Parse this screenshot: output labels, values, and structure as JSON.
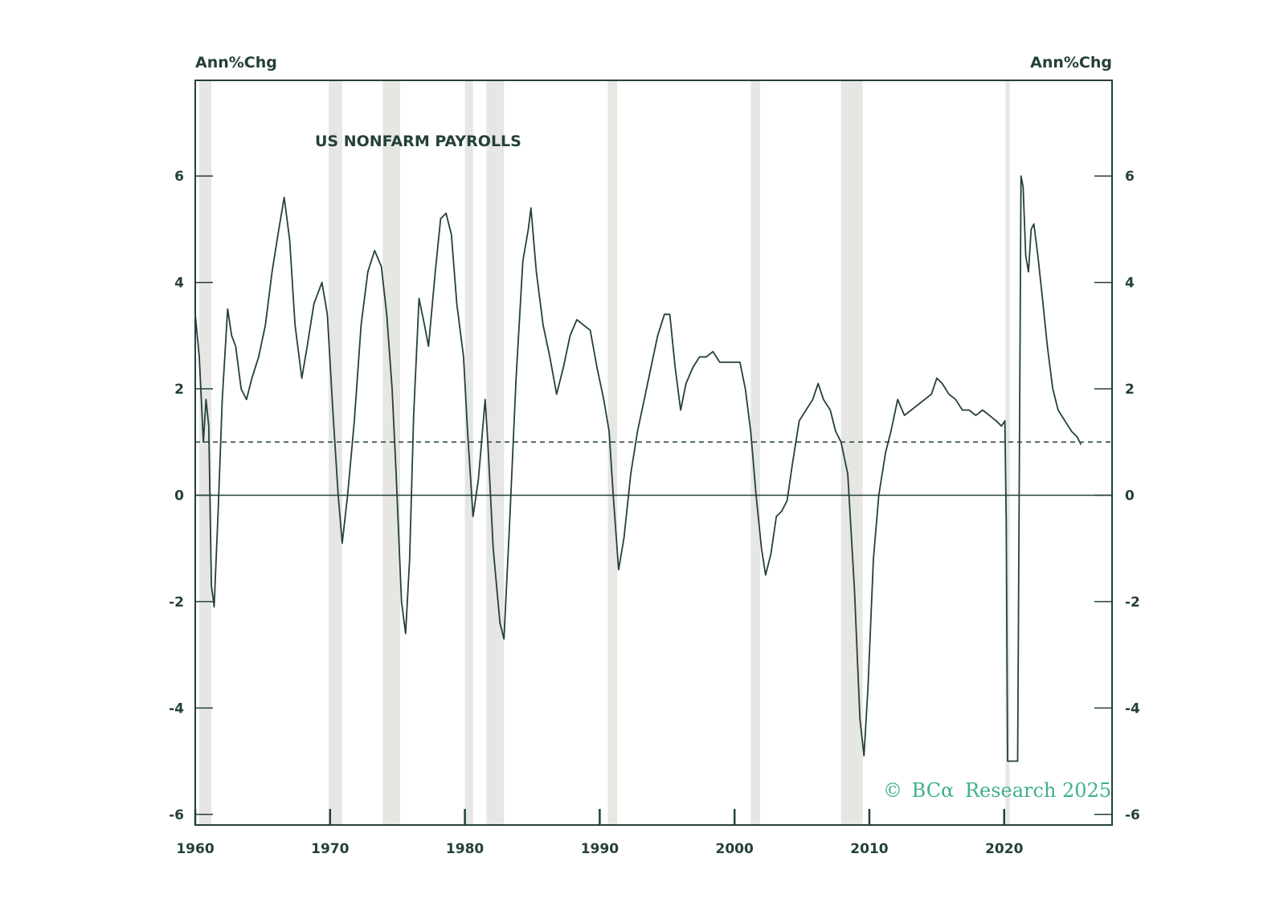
{
  "chart_data": {
    "type": "line",
    "title": "US NONFARM PAYROLLS",
    "ylabel_left": "Ann%Chg",
    "ylabel_right": "Ann%Chg",
    "xlim": [
      1960,
      2028
    ],
    "ylim": [
      -6.2,
      7.8
    ],
    "x_ticks": [
      1960,
      1970,
      1980,
      1990,
      2000,
      2010,
      2020
    ],
    "x_tick_labels": [
      "1960",
      "1970",
      "1980",
      "1990",
      "2000",
      "2010",
      "2020"
    ],
    "y_ticks": [
      -6,
      -4,
      -2,
      0,
      2,
      4,
      6
    ],
    "y_tick_labels": [
      "-6",
      "-4",
      "-2",
      "0",
      "2",
      "4",
      "6"
    ],
    "reference_lines": [
      {
        "y": 0,
        "style": "solid"
      },
      {
        "y": 1,
        "style": "dashed"
      }
    ],
    "recessions": [
      [
        1960.3,
        1961.2
      ],
      [
        1969.9,
        1970.9
      ],
      [
        1973.9,
        1975.2
      ],
      [
        1980.0,
        1980.6
      ],
      [
        1981.6,
        1982.9
      ],
      [
        1990.6,
        1991.3
      ],
      [
        2001.2,
        2001.9
      ],
      [
        2007.9,
        2009.5
      ],
      [
        2020.1,
        2020.4
      ]
    ],
    "series": [
      {
        "values": [
          [
            1960.0,
            3.4
          ],
          [
            1960.3,
            2.6
          ],
          [
            1960.6,
            1.0
          ],
          [
            1960.8,
            1.8
          ],
          [
            1961.0,
            1.3
          ],
          [
            1961.2,
            -1.7
          ],
          [
            1961.4,
            -2.1
          ],
          [
            1961.7,
            -0.3
          ],
          [
            1962.0,
            1.8
          ],
          [
            1962.4,
            3.5
          ],
          [
            1962.7,
            3.0
          ],
          [
            1963.0,
            2.8
          ],
          [
            1963.4,
            2.0
          ],
          [
            1963.8,
            1.8
          ],
          [
            1964.2,
            2.2
          ],
          [
            1964.7,
            2.6
          ],
          [
            1965.2,
            3.2
          ],
          [
            1965.7,
            4.2
          ],
          [
            1966.2,
            5.0
          ],
          [
            1966.6,
            5.6
          ],
          [
            1967.0,
            4.8
          ],
          [
            1967.4,
            3.2
          ],
          [
            1967.9,
            2.2
          ],
          [
            1968.3,
            2.8
          ],
          [
            1968.8,
            3.6
          ],
          [
            1969.4,
            4.0
          ],
          [
            1969.8,
            3.4
          ],
          [
            1970.2,
            1.6
          ],
          [
            1970.6,
            0.0
          ],
          [
            1970.9,
            -0.9
          ],
          [
            1971.3,
            0.0
          ],
          [
            1971.8,
            1.4
          ],
          [
            1972.3,
            3.2
          ],
          [
            1972.8,
            4.2
          ],
          [
            1973.3,
            4.6
          ],
          [
            1973.8,
            4.3
          ],
          [
            1974.2,
            3.4
          ],
          [
            1974.6,
            2.0
          ],
          [
            1974.9,
            0.4
          ],
          [
            1975.3,
            -2.0
          ],
          [
            1975.6,
            -2.6
          ],
          [
            1975.9,
            -1.2
          ],
          [
            1976.2,
            1.5
          ],
          [
            1976.6,
            3.7
          ],
          [
            1977.0,
            3.2
          ],
          [
            1977.3,
            2.8
          ],
          [
            1977.8,
            4.2
          ],
          [
            1978.2,
            5.2
          ],
          [
            1978.6,
            5.3
          ],
          [
            1979.0,
            4.9
          ],
          [
            1979.4,
            3.6
          ],
          [
            1979.9,
            2.6
          ],
          [
            1980.2,
            1.2
          ],
          [
            1980.6,
            -0.4
          ],
          [
            1981.0,
            0.3
          ],
          [
            1981.5,
            1.8
          ],
          [
            1981.7,
            1.0
          ],
          [
            1982.1,
            -1.0
          ],
          [
            1982.6,
            -2.4
          ],
          [
            1982.9,
            -2.7
          ],
          [
            1983.3,
            -0.6
          ],
          [
            1983.8,
            2.2
          ],
          [
            1984.3,
            4.4
          ],
          [
            1984.7,
            5.0
          ],
          [
            1984.9,
            5.4
          ],
          [
            1985.3,
            4.2
          ],
          [
            1985.8,
            3.2
          ],
          [
            1986.3,
            2.6
          ],
          [
            1986.8,
            1.9
          ],
          [
            1987.3,
            2.4
          ],
          [
            1987.8,
            3.0
          ],
          [
            1988.3,
            3.3
          ],
          [
            1988.8,
            3.2
          ],
          [
            1989.3,
            3.1
          ],
          [
            1989.8,
            2.4
          ],
          [
            1990.3,
            1.8
          ],
          [
            1990.7,
            1.2
          ],
          [
            1991.0,
            0.0
          ],
          [
            1991.4,
            -1.4
          ],
          [
            1991.8,
            -0.8
          ],
          [
            1992.3,
            0.4
          ],
          [
            1992.8,
            1.2
          ],
          [
            1993.3,
            1.8
          ],
          [
            1993.8,
            2.4
          ],
          [
            1994.3,
            3.0
          ],
          [
            1994.8,
            3.4
          ],
          [
            1995.2,
            3.4
          ],
          [
            1995.6,
            2.4
          ],
          [
            1996.0,
            1.6
          ],
          [
            1996.4,
            2.1
          ],
          [
            1996.9,
            2.4
          ],
          [
            1997.4,
            2.6
          ],
          [
            1997.9,
            2.6
          ],
          [
            1998.4,
            2.7
          ],
          [
            1998.9,
            2.5
          ],
          [
            1999.4,
            2.5
          ],
          [
            1999.9,
            2.5
          ],
          [
            2000.4,
            2.5
          ],
          [
            2000.8,
            2.0
          ],
          [
            2001.2,
            1.2
          ],
          [
            2001.6,
            0.0
          ],
          [
            2002.0,
            -1.0
          ],
          [
            2002.3,
            -1.5
          ],
          [
            2002.7,
            -1.1
          ],
          [
            2003.1,
            -0.4
          ],
          [
            2003.5,
            -0.3
          ],
          [
            2003.9,
            -0.1
          ],
          [
            2004.3,
            0.6
          ],
          [
            2004.8,
            1.4
          ],
          [
            2005.3,
            1.6
          ],
          [
            2005.8,
            1.8
          ],
          [
            2006.2,
            2.1
          ],
          [
            2006.6,
            1.8
          ],
          [
            2007.1,
            1.6
          ],
          [
            2007.5,
            1.2
          ],
          [
            2007.9,
            1.0
          ],
          [
            2008.4,
            0.4
          ],
          [
            2008.9,
            -1.8
          ],
          [
            2009.3,
            -4.2
          ],
          [
            2009.6,
            -4.9
          ],
          [
            2009.9,
            -3.6
          ],
          [
            2010.3,
            -1.2
          ],
          [
            2010.7,
            0.0
          ],
          [
            2011.2,
            0.8
          ],
          [
            2011.6,
            1.2
          ],
          [
            2012.1,
            1.8
          ],
          [
            2012.6,
            1.5
          ],
          [
            2013.1,
            1.6
          ],
          [
            2013.6,
            1.7
          ],
          [
            2014.1,
            1.8
          ],
          [
            2014.6,
            1.9
          ],
          [
            2015.0,
            2.2
          ],
          [
            2015.4,
            2.1
          ],
          [
            2015.9,
            1.9
          ],
          [
            2016.4,
            1.8
          ],
          [
            2016.9,
            1.6
          ],
          [
            2017.4,
            1.6
          ],
          [
            2017.9,
            1.5
          ],
          [
            2018.4,
            1.6
          ],
          [
            2018.9,
            1.5
          ],
          [
            2019.4,
            1.4
          ],
          [
            2019.8,
            1.3
          ],
          [
            2020.05,
            1.4
          ],
          [
            2020.15,
            -0.5
          ],
          [
            2020.25,
            -5.0
          ],
          [
            2020.7,
            -5.0
          ],
          [
            2021.0,
            -5.0
          ],
          [
            2021.12,
            0.5
          ],
          [
            2021.25,
            6.0
          ],
          [
            2021.4,
            5.8
          ],
          [
            2021.6,
            4.5
          ],
          [
            2021.8,
            4.2
          ],
          [
            2022.0,
            5.0
          ],
          [
            2022.2,
            5.1
          ],
          [
            2022.5,
            4.5
          ],
          [
            2022.8,
            3.8
          ],
          [
            2023.2,
            2.8
          ],
          [
            2023.6,
            2.0
          ],
          [
            2024.0,
            1.6
          ],
          [
            2024.5,
            1.4
          ],
          [
            2025.0,
            1.2
          ],
          [
            2025.4,
            1.1
          ],
          [
            2025.7,
            0.95
          ]
        ]
      }
    ]
  },
  "credit": {
    "symbol": "©",
    "brand": "BCα",
    "rest": "Research 2025"
  },
  "colors": {
    "line": "#24403a",
    "recession": "#e6e6e2",
    "axis": "#24403a",
    "credit": "#3fb08c"
  }
}
